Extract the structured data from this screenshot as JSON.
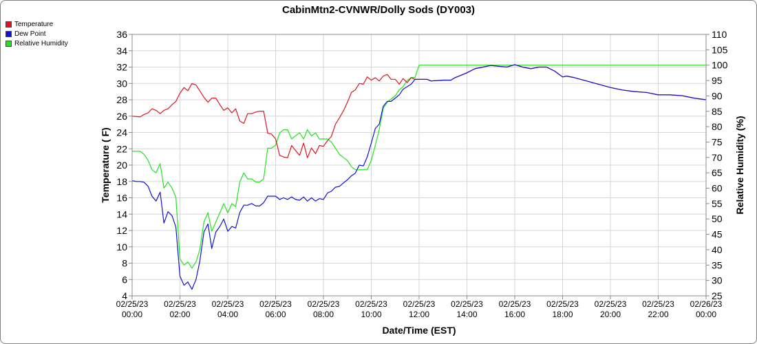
{
  "chart_data": {
    "type": "line",
    "title": "CabinMtn2-CVNWR/Dolly Sods (DY003)",
    "xlabel": "Date/Time (EST)",
    "ylabel": "Temperature ( F)",
    "y2label": "Relative Humidity (%)",
    "ylim": [
      4,
      36
    ],
    "y2lim": [
      25,
      110
    ],
    "grid": true,
    "legend_position": "top-left",
    "x_ticks": [
      {
        "h": 0,
        "date": "02/25/23",
        "time": "00:00"
      },
      {
        "h": 2,
        "date": "02/25/23",
        "time": "02:00"
      },
      {
        "h": 4,
        "date": "02/25/23",
        "time": "04:00"
      },
      {
        "h": 6,
        "date": "02/25/23",
        "time": "06:00"
      },
      {
        "h": 8,
        "date": "02/25/23",
        "time": "08:00"
      },
      {
        "h": 10,
        "date": "02/25/23",
        "time": "10:00"
      },
      {
        "h": 12,
        "date": "02/25/23",
        "time": "12:00"
      },
      {
        "h": 14,
        "date": "02/25/23",
        "time": "14:00"
      },
      {
        "h": 16,
        "date": "02/25/23",
        "time": "16:00"
      },
      {
        "h": 18,
        "date": "02/25/23",
        "time": "18:00"
      },
      {
        "h": 20,
        "date": "02/25/23",
        "time": "20:00"
      },
      {
        "h": 22,
        "date": "02/25/23",
        "time": "22:00"
      },
      {
        "h": 24,
        "date": "02/26/23",
        "time": "00:00"
      }
    ],
    "y_ticks": [
      4,
      6,
      8,
      10,
      12,
      14,
      16,
      18,
      20,
      22,
      24,
      26,
      28,
      30,
      32,
      34,
      36
    ],
    "y2_ticks": [
      25,
      30,
      35,
      40,
      45,
      50,
      55,
      60,
      65,
      70,
      75,
      80,
      85,
      90,
      95,
      100,
      105,
      110
    ],
    "series": [
      {
        "name": "Temperature",
        "axis": "left",
        "color": "#e0141e",
        "points": [
          [
            0,
            26
          ],
          [
            0.33,
            25.9
          ],
          [
            0.5,
            26.2
          ],
          [
            0.67,
            26.4
          ],
          [
            0.83,
            26.9
          ],
          [
            1,
            26.7
          ],
          [
            1.17,
            26.3
          ],
          [
            1.33,
            26.7
          ],
          [
            1.5,
            26.9
          ],
          [
            1.67,
            27.4
          ],
          [
            1.83,
            27.8
          ],
          [
            2,
            28.8
          ],
          [
            2.17,
            29.5
          ],
          [
            2.33,
            29.1
          ],
          [
            2.5,
            30
          ],
          [
            2.67,
            29.8
          ],
          [
            2.83,
            29.1
          ],
          [
            3,
            28.3
          ],
          [
            3.17,
            27.7
          ],
          [
            3.33,
            28.2
          ],
          [
            3.5,
            28.2
          ],
          [
            3.67,
            27.4
          ],
          [
            3.83,
            26.7
          ],
          [
            4,
            27
          ],
          [
            4.17,
            26.4
          ],
          [
            4.33,
            26.9
          ],
          [
            4.5,
            25.4
          ],
          [
            4.67,
            25.1
          ],
          [
            4.83,
            26.3
          ],
          [
            5,
            26.3
          ],
          [
            5.17,
            26.5
          ],
          [
            5.33,
            26.6
          ],
          [
            5.5,
            26.6
          ],
          [
            5.67,
            23.9
          ],
          [
            5.83,
            23.8
          ],
          [
            6,
            23.2
          ],
          [
            6.17,
            21.2
          ],
          [
            6.33,
            21
          ],
          [
            6.5,
            20.9
          ],
          [
            6.67,
            22.4
          ],
          [
            6.83,
            21.8
          ],
          [
            7,
            21.2
          ],
          [
            7.17,
            22.7
          ],
          [
            7.33,
            20.9
          ],
          [
            7.5,
            22.1
          ],
          [
            7.67,
            21.4
          ],
          [
            7.83,
            22.4
          ],
          [
            8,
            22.3
          ],
          [
            8.17,
            23
          ],
          [
            8.33,
            23.5
          ],
          [
            8.5,
            25
          ],
          [
            8.67,
            25.8
          ],
          [
            8.83,
            26.6
          ],
          [
            9,
            27.7
          ],
          [
            9.17,
            28.9
          ],
          [
            9.33,
            29.2
          ],
          [
            9.5,
            30
          ],
          [
            9.67,
            29.9
          ],
          [
            9.83,
            30.8
          ],
          [
            10,
            30.4
          ],
          [
            10.17,
            30.7
          ],
          [
            10.33,
            30.3
          ],
          [
            10.5,
            30.9
          ],
          [
            10.67,
            31.1
          ],
          [
            10.83,
            30.5
          ],
          [
            11,
            30.5
          ],
          [
            11.17,
            29.9
          ],
          [
            11.33,
            30.6
          ],
          [
            11.5,
            30.1
          ],
          [
            11.67,
            30.7
          ],
          [
            11.83,
            30.5
          ],
          [
            12,
            30.5
          ],
          [
            12.33,
            30.5
          ],
          [
            12.5,
            30.3
          ],
          [
            13,
            30.4
          ],
          [
            13.33,
            30.4
          ],
          [
            13.5,
            30.7
          ],
          [
            13.67,
            30.9
          ],
          [
            14,
            31.3
          ],
          [
            14.33,
            31.8
          ],
          [
            14.67,
            32
          ],
          [
            15,
            32.2
          ],
          [
            15.33,
            32.1
          ],
          [
            15.67,
            32
          ],
          [
            16,
            32.3
          ],
          [
            16.33,
            32
          ],
          [
            16.67,
            31.8
          ],
          [
            17,
            32
          ],
          [
            17.33,
            32
          ],
          [
            17.67,
            31.5
          ],
          [
            18,
            30.8
          ],
          [
            18.17,
            30.9
          ],
          [
            18.5,
            30.7
          ],
          [
            19,
            30.3
          ],
          [
            19.5,
            29.9
          ],
          [
            20,
            29.5
          ],
          [
            20.5,
            29.2
          ],
          [
            21,
            29
          ],
          [
            21.5,
            28.9
          ],
          [
            22,
            28.6
          ],
          [
            22.5,
            28.6
          ],
          [
            23,
            28.5
          ],
          [
            23.5,
            28.2
          ],
          [
            24,
            28
          ]
        ]
      },
      {
        "name": "Dew Point",
        "axis": "left",
        "color": "#1010d8",
        "points": [
          [
            0,
            18.1
          ],
          [
            0.17,
            18
          ],
          [
            0.33,
            18
          ],
          [
            0.5,
            17.9
          ],
          [
            0.67,
            17.4
          ],
          [
            0.83,
            16.2
          ],
          [
            1,
            15.6
          ],
          [
            1.17,
            16.7
          ],
          [
            1.33,
            12.9
          ],
          [
            1.5,
            14.3
          ],
          [
            1.67,
            13.8
          ],
          [
            1.83,
            12.4
          ],
          [
            2,
            6.4
          ],
          [
            2.17,
            5.3
          ],
          [
            2.33,
            5.7
          ],
          [
            2.5,
            4.8
          ],
          [
            2.67,
            6
          ],
          [
            2.83,
            8.2
          ],
          [
            3,
            11.8
          ],
          [
            3.17,
            12.8
          ],
          [
            3.33,
            9.8
          ],
          [
            3.5,
            11.8
          ],
          [
            3.67,
            12.5
          ],
          [
            3.83,
            13.4
          ],
          [
            4,
            11.9
          ],
          [
            4.17,
            12.5
          ],
          [
            4.33,
            12.3
          ],
          [
            4.5,
            14.2
          ],
          [
            4.67,
            15.1
          ],
          [
            4.83,
            15.1
          ],
          [
            5,
            15.3
          ],
          [
            5.17,
            15
          ],
          [
            5.33,
            15
          ],
          [
            5.5,
            15.4
          ],
          [
            5.67,
            16.2
          ],
          [
            5.83,
            16.2
          ],
          [
            6,
            16.2
          ],
          [
            6.17,
            15.8
          ],
          [
            6.33,
            16
          ],
          [
            6.5,
            15.8
          ],
          [
            6.67,
            16.1
          ],
          [
            6.83,
            15.8
          ],
          [
            7,
            15.7
          ],
          [
            7.17,
            16.1
          ],
          [
            7.33,
            15.6
          ],
          [
            7.5,
            16
          ],
          [
            7.67,
            15.6
          ],
          [
            7.83,
            15.9
          ],
          [
            8,
            15.8
          ],
          [
            8.17,
            16.6
          ],
          [
            8.33,
            16.8
          ],
          [
            8.5,
            17.3
          ],
          [
            8.67,
            17.4
          ],
          [
            8.83,
            17.8
          ],
          [
            9,
            18.2
          ],
          [
            9.17,
            18.7
          ],
          [
            9.33,
            19
          ],
          [
            9.5,
            20
          ],
          [
            9.67,
            19.9
          ],
          [
            9.83,
            21
          ],
          [
            10,
            22.7
          ],
          [
            10.17,
            24.5
          ],
          [
            10.33,
            25
          ],
          [
            10.5,
            27.2
          ],
          [
            10.67,
            27.8
          ],
          [
            10.83,
            27.8
          ],
          [
            11,
            28.2
          ],
          [
            11.17,
            28.6
          ],
          [
            11.33,
            29.3
          ],
          [
            11.5,
            29.6
          ],
          [
            11.67,
            29.9
          ],
          [
            11.83,
            30.5
          ],
          [
            12,
            30.5
          ],
          [
            12.33,
            30.5
          ],
          [
            12.5,
            30.3
          ],
          [
            13,
            30.4
          ],
          [
            13.33,
            30.4
          ],
          [
            13.5,
            30.7
          ],
          [
            13.67,
            30.9
          ],
          [
            14,
            31.3
          ],
          [
            14.33,
            31.8
          ],
          [
            14.67,
            32
          ],
          [
            15,
            32.2
          ],
          [
            15.33,
            32.1
          ],
          [
            15.67,
            32
          ],
          [
            16,
            32.3
          ],
          [
            16.33,
            32
          ],
          [
            16.67,
            31.8
          ],
          [
            17,
            32
          ],
          [
            17.33,
            32
          ],
          [
            17.67,
            31.5
          ],
          [
            18,
            30.8
          ],
          [
            18.17,
            30.9
          ],
          [
            18.5,
            30.7
          ],
          [
            19,
            30.3
          ],
          [
            19.5,
            29.9
          ],
          [
            20,
            29.5
          ],
          [
            20.5,
            29.2
          ],
          [
            21,
            29
          ],
          [
            21.5,
            28.9
          ],
          [
            22,
            28.6
          ],
          [
            22.5,
            28.6
          ],
          [
            23,
            28.5
          ],
          [
            23.5,
            28.2
          ],
          [
            24,
            28
          ]
        ]
      },
      {
        "name": "Relative Humidity",
        "axis": "right",
        "color": "#1ee61e",
        "points": [
          [
            0,
            72
          ],
          [
            0.33,
            72
          ],
          [
            0.5,
            71
          ],
          [
            0.67,
            69
          ],
          [
            0.83,
            66
          ],
          [
            1,
            65
          ],
          [
            1.17,
            68
          ],
          [
            1.33,
            60
          ],
          [
            1.5,
            62
          ],
          [
            1.67,
            60
          ],
          [
            1.83,
            57
          ],
          [
            2,
            37
          ],
          [
            2.17,
            35
          ],
          [
            2.33,
            36
          ],
          [
            2.5,
            34
          ],
          [
            2.67,
            36
          ],
          [
            2.83,
            40
          ],
          [
            3,
            49
          ],
          [
            3.17,
            52
          ],
          [
            3.33,
            46
          ],
          [
            3.5,
            49
          ],
          [
            3.67,
            52
          ],
          [
            3.83,
            55
          ],
          [
            4,
            52
          ],
          [
            4.17,
            55
          ],
          [
            4.33,
            54
          ],
          [
            4.5,
            62
          ],
          [
            4.67,
            65
          ],
          [
            4.83,
            63
          ],
          [
            5,
            63
          ],
          [
            5.17,
            62
          ],
          [
            5.33,
            62
          ],
          [
            5.5,
            63
          ],
          [
            5.67,
            73
          ],
          [
            5.83,
            73
          ],
          [
            6,
            74
          ],
          [
            6.17,
            78
          ],
          [
            6.33,
            79
          ],
          [
            6.5,
            79
          ],
          [
            6.67,
            76
          ],
          [
            6.83,
            77
          ],
          [
            7,
            78
          ],
          [
            7.17,
            76
          ],
          [
            7.33,
            79
          ],
          [
            7.5,
            77
          ],
          [
            7.67,
            78
          ],
          [
            7.83,
            76
          ],
          [
            8,
            76
          ],
          [
            8.17,
            76
          ],
          [
            8.33,
            75
          ],
          [
            8.5,
            73
          ],
          [
            8.67,
            71
          ],
          [
            8.83,
            70
          ],
          [
            9,
            69
          ],
          [
            9.17,
            67
          ],
          [
            9.33,
            66
          ],
          [
            9.5,
            66
          ],
          [
            9.67,
            66
          ],
          [
            9.83,
            66
          ],
          [
            10,
            69
          ],
          [
            10.17,
            74
          ],
          [
            10.33,
            79
          ],
          [
            10.5,
            86
          ],
          [
            10.67,
            88
          ],
          [
            10.83,
            89
          ],
          [
            11,
            90
          ],
          [
            11.17,
            92
          ],
          [
            11.33,
            93
          ],
          [
            11.5,
            95
          ],
          [
            11.67,
            96
          ],
          [
            11.83,
            96
          ],
          [
            12,
            100
          ],
          [
            13,
            100
          ],
          [
            14,
            100
          ],
          [
            15,
            100
          ],
          [
            16,
            100
          ],
          [
            17,
            100
          ],
          [
            18,
            100
          ],
          [
            19,
            100
          ],
          [
            20,
            100
          ],
          [
            21,
            100
          ],
          [
            22,
            100
          ],
          [
            23,
            100
          ],
          [
            24,
            100
          ]
        ]
      }
    ]
  }
}
